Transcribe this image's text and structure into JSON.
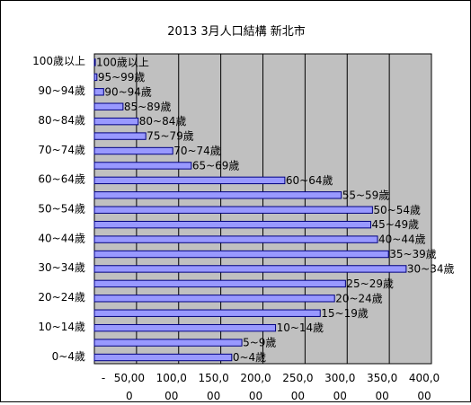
{
  "chart_data": {
    "type": "bar",
    "orientation": "horizontal",
    "title": "2013 3月人口結構 新北市",
    "xlabel": "",
    "ylabel": "",
    "xlim": [
      0,
      400
    ],
    "x_ticks": [
      0,
      50,
      100,
      150,
      200,
      250,
      300,
      350,
      400
    ],
    "x_tick_labels": [
      "-",
      "50,00\n0",
      "100,0\n00",
      "150,0\n00",
      "200,0\n00",
      "250,0\n00",
      "300,0\n00",
      "350,0\n00",
      "400,0\n00"
    ],
    "grid": "vertical",
    "legend": "none",
    "categories": [
      "0~4歲",
      "5~9歲",
      "10~14歲",
      "15~19歲",
      "20~24歲",
      "25~29歲",
      "30~34歲",
      "35~39歲",
      "40~44歲",
      "45~49歲",
      "50~54歲",
      "55~59歲",
      "60~64歲",
      "65~69歲",
      "70~74歲",
      "75~79歲",
      "80~84歲",
      "85~89歲",
      "90~94歲",
      "95~99歲",
      "100歲以上"
    ],
    "y_tick_labels": [
      "0~4歲",
      "",
      "10~14歲",
      "",
      "20~24歲",
      "",
      "30~34歲",
      "",
      "40~44歲",
      "",
      "50~54歲",
      "",
      "60~64歲",
      "",
      "70~74歲",
      "",
      "80~84歲",
      "",
      "90~94歲",
      "",
      "100歲以上"
    ],
    "values": [
      163,
      175,
      215,
      268,
      285,
      298,
      370,
      349,
      336,
      328,
      330,
      293,
      226,
      115,
      93,
      61,
      52,
      34,
      11,
      3,
      1
    ],
    "data_labels": [
      "0~4歲",
      "5~9歲",
      "10~14歲",
      "15~19歲",
      "20~24歲",
      "25~29歲",
      "30~34歲",
      "35~39歲",
      "40~44歲",
      "45~49歲",
      "50~54歲",
      "55~59歲",
      "60~64歲",
      "65~69歲",
      "70~74歲",
      "75~79歲",
      "80~84歲",
      "85~89歲",
      "90~94歲",
      "95~99歲",
      "100歲以上"
    ],
    "colors": {
      "bar_fill": "#9999ff",
      "bar_stroke": "#000080",
      "plot_bg": "#c0c0c0",
      "grid": "#000000"
    }
  }
}
